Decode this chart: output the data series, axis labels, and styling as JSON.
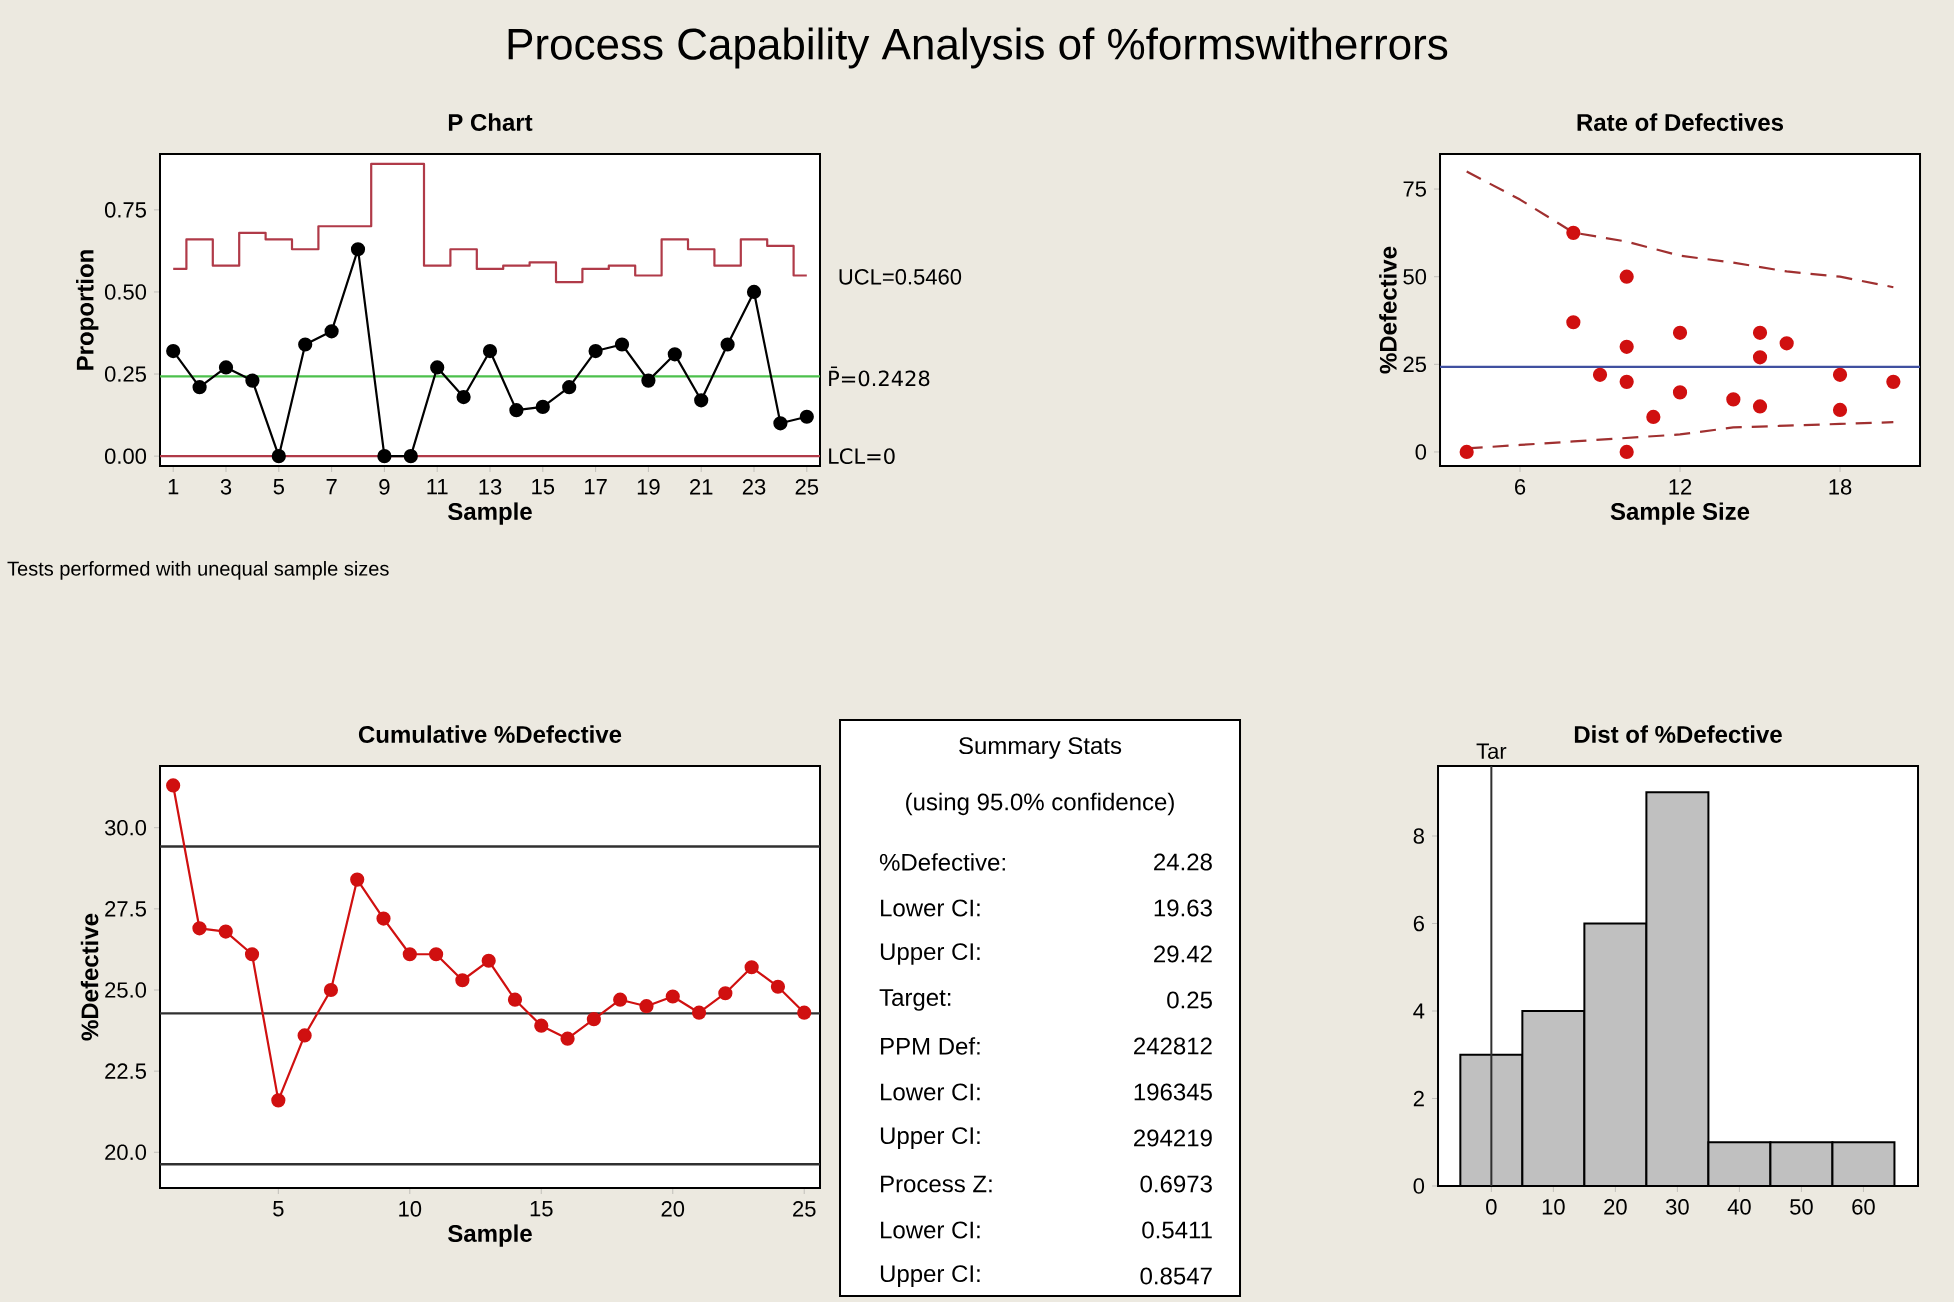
{
  "chart_data": [
    {
      "type": "other",
      "title": "Process Capability Analysis of %formswitherrors"
    },
    {
      "type": "line",
      "title": "P Chart",
      "xlabel": "Sample",
      "ylabel": "Proportion",
      "x": [
        1,
        2,
        3,
        4,
        5,
        6,
        7,
        8,
        9,
        10,
        11,
        12,
        13,
        14,
        15,
        16,
        17,
        18,
        19,
        20,
        21,
        22,
        23,
        24,
        25
      ],
      "series": [
        {
          "type": "step",
          "color": "#b03a48",
          "marker": "none",
          "values": [
            0.57,
            0.66,
            0.58,
            0.68,
            0.66,
            0.63,
            0.7,
            0.7,
            0.89,
            0.89,
            0.58,
            0.63,
            0.57,
            0.58,
            0.59,
            0.53,
            0.57,
            0.58,
            0.55,
            0.66,
            0.63,
            0.58,
            0.66,
            0.64,
            0.55
          ]
        },
        {
          "type": "line",
          "color": "#000000",
          "marker": "circle",
          "values": [
            0.32,
            0.21,
            0.27,
            0.23,
            0,
            0.34,
            0.38,
            0.63,
            0,
            0,
            0.27,
            0.18,
            0.32,
            0.14,
            0.15,
            0.21,
            0.32,
            0.34,
            0.23,
            0.31,
            0.17,
            0.34,
            0.5,
            0.1,
            0.12
          ]
        }
      ],
      "ref_lines": [
        {
          "axis": "y",
          "value": 0.2428,
          "label": "P̄=0.2428",
          "color": "#4cc04c"
        },
        {
          "axis": "y",
          "value": 0,
          "label": "LCL=0",
          "color": "#b03a48"
        }
      ],
      "annotations": [
        {
          "text": "UCL=0.5460",
          "x": 25,
          "y": 0.546
        },
        "Tests performed with unequal sample sizes"
      ],
      "xlim": [
        0.5,
        25.5
      ],
      "ylim": [
        -0.03,
        0.92
      ],
      "xticks": [
        1,
        3,
        5,
        7,
        9,
        11,
        13,
        15,
        17,
        19,
        21,
        23,
        25
      ],
      "yticks": [
        {
          "value": 0,
          "label": "0.00"
        },
        0.25,
        {
          "value": 0.5,
          "label": "0.50"
        },
        0.75
      ]
    },
    {
      "type": "scatter",
      "title": "Rate of Defectives",
      "xlabel": "Sample Size",
      "ylabel": "%Defective",
      "series": [
        {
          "type": "scatter",
          "color": "#d01010",
          "marker": "circle",
          "x": [
            4,
            8,
            8,
            9,
            10,
            10,
            10,
            10,
            11,
            12,
            12,
            14,
            15,
            15,
            15,
            16,
            18,
            18,
            20
          ],
          "values": [
            0,
            62.5,
            37,
            22,
            50,
            30,
            20,
            0,
            10,
            34,
            17,
            15,
            34,
            27,
            13,
            31,
            22,
            12,
            20
          ]
        },
        {
          "type": "line",
          "color": "#a03030",
          "marker": "none",
          "line_style": "dashed",
          "x": [
            4,
            6,
            8,
            10,
            12,
            14,
            16,
            18,
            20
          ],
          "values": [
            80,
            72,
            62.6,
            60,
            56,
            54,
            51.5,
            50,
            47
          ]
        },
        {
          "type": "line",
          "color": "#a03030",
          "marker": "none",
          "line_style": "dashed",
          "x": [
            4,
            6,
            8,
            10,
            12,
            14,
            16,
            18,
            20
          ],
          "values": [
            1,
            2,
            3,
            4,
            5,
            7,
            7.5,
            8,
            8.5
          ]
        }
      ],
      "ref_lines": [
        {
          "axis": "y",
          "value": 24.28,
          "color": "#4050a0"
        }
      ],
      "xlim": [
        3,
        21
      ],
      "ylim": [
        -4,
        85
      ],
      "xticks": [
        6,
        12,
        18
      ],
      "yticks": [
        0,
        25,
        50,
        75
      ]
    },
    {
      "type": "line",
      "title": "Cumulative %Defective",
      "xlabel": "Sample",
      "ylabel": "%Defective",
      "x": [
        1,
        2,
        3,
        4,
        5,
        6,
        7,
        8,
        9,
        10,
        11,
        12,
        13,
        14,
        15,
        16,
        17,
        18,
        19,
        20,
        21,
        22,
        23,
        24,
        25
      ],
      "series": [
        {
          "color": "#d01010",
          "marker": "circle",
          "values": [
            31.3,
            26.9,
            26.8,
            26.1,
            21.6,
            23.6,
            25.0,
            28.4,
            27.2,
            26.1,
            26.1,
            25.3,
            25.9,
            24.7,
            23.9,
            23.5,
            24.1,
            24.7,
            24.5,
            24.8,
            24.3,
            24.9,
            25.7,
            25.1,
            24.3
          ]
        }
      ],
      "ref_lines": [
        {
          "axis": "y",
          "value": 29.42,
          "color": "#303030"
        },
        {
          "axis": "y",
          "value": 24.28,
          "color": "#303030"
        },
        {
          "axis": "y",
          "value": 19.63,
          "color": "#303030"
        }
      ],
      "xlim": [
        0.5,
        25.6
      ],
      "ylim": [
        18.9,
        31.9
      ],
      "xticks": [
        5,
        10,
        15,
        20,
        25
      ],
      "yticks": [
        {
          "value": 20,
          "label": "20.0"
        },
        22.5,
        {
          "value": 25,
          "label": "25.0"
        },
        27.5,
        {
          "value": 30,
          "label": "30.0"
        }
      ]
    },
    {
      "type": "other",
      "title": "Summary Stats",
      "subtitle": "(using 95.0% confidence)",
      "annotations": [
        "%Defective:",
        "24.28",
        "Lower CI:",
        "19.63",
        "Upper CI:",
        "29.42",
        "Target:",
        "0.25",
        "PPM Def:",
        "242812",
        "Lower CI:",
        "196345",
        "Upper CI:",
        "294219",
        "Process Z:",
        "0.6973",
        "Lower CI:",
        "0.5411",
        "Upper CI:",
        "0.8547"
      ]
    },
    {
      "type": "histogram",
      "title": "Dist of %Defective",
      "bins": [
        -5,
        5,
        15,
        25,
        35,
        45,
        55,
        65
      ],
      "values": [
        3,
        4,
        6,
        9,
        1,
        1,
        1
      ],
      "color": "#c0c0c0",
      "ref_lines": [
        {
          "axis": "x",
          "value": 0,
          "label": "Tar",
          "color": "#303030"
        }
      ],
      "xlim": [
        -8.6,
        68.8
      ],
      "ylim": [
        0,
        9.6
      ],
      "xticks": [
        0,
        10,
        20,
        30,
        40,
        50,
        60
      ],
      "yticks": [
        0,
        2,
        4,
        6,
        8
      ]
    }
  ]
}
